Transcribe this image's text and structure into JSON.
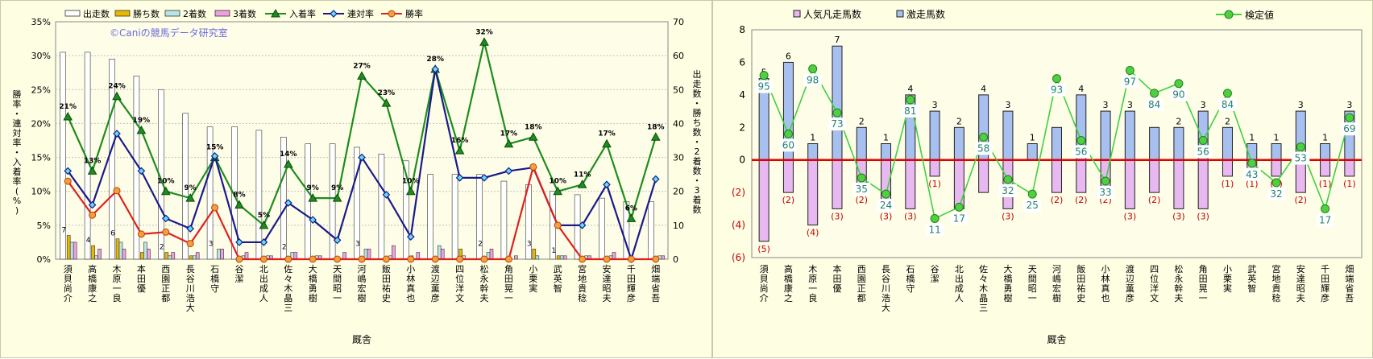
{
  "watermark": "©Caniの競馬データ研究室",
  "chart_data": [
    {
      "type": "bar",
      "xlabel": "厩舎",
      "ylabel_left": "勝率・連対率・入着率(%)",
      "ylabel_right": "出走数・勝ち数・2着数・3着数",
      "ylim_left": [
        0,
        35
      ],
      "ylim_right": [
        0,
        70
      ],
      "left_ticks": [
        "0%",
        "5%",
        "10%",
        "15%",
        "20%",
        "25%",
        "30%",
        "35%"
      ],
      "right_ticks": [
        "0",
        "10",
        "20",
        "30",
        "40",
        "50",
        "60",
        "70"
      ],
      "legend_position": "top",
      "categories": [
        "須貝 尚介",
        "高橋 康之",
        "木原 一良",
        "本田 優",
        "西園 正都",
        "長谷川 浩大",
        "石橋 守",
        "谷 潔",
        "北出 成人",
        "佐々木 晶三",
        "大橋 勇樹",
        "天間 昭一",
        "河嶋 宏樹",
        "飯田 祐史",
        "小林 真也",
        "渡辺 薫彦",
        "四位 洋文",
        "松永 幹夫",
        "角田 晃一",
        "小栗 実",
        "武 英智",
        "宮地 貴稔",
        "安達 昭夫",
        "千田 輝彦",
        "畑端 省吾"
      ],
      "series": [
        {
          "name": "出走数",
          "kind": "bar",
          "axis": "right",
          "color": "#ffffff",
          "values": [
            61,
            61,
            59,
            54,
            50,
            43,
            39,
            39,
            38,
            36,
            34,
            34,
            33,
            31,
            29,
            25,
            25,
            25,
            23,
            22,
            20,
            19,
            18,
            17,
            17
          ]
        },
        {
          "name": "勝ち数",
          "kind": "bar",
          "axis": "right",
          "color": "#e8b800",
          "values": [
            7,
            4,
            6,
            2,
            2,
            1,
            0,
            0,
            0,
            0,
            0,
            0,
            0,
            0,
            1,
            0,
            3,
            0,
            0,
            3,
            1,
            0,
            0,
            0,
            0
          ]
        },
        {
          "name": "2着数",
          "kind": "bar",
          "axis": "right",
          "color": "#b8e6e6",
          "values": [
            5,
            1,
            5,
            5,
            1,
            1,
            3,
            1,
            1,
            2,
            1,
            0,
            3,
            1,
            0,
            4,
            1,
            2,
            0,
            1,
            1,
            1,
            1,
            0,
            1
          ]
        },
        {
          "name": "3着数",
          "kind": "bar",
          "axis": "right",
          "color": "#f0a0e0",
          "values": [
            5,
            3,
            3,
            3,
            2,
            2,
            3,
            2,
            1,
            2,
            1,
            2,
            3,
            4,
            2,
            3,
            0,
            3,
            1,
            0,
            1,
            1,
            2,
            0,
            1
          ]
        },
        {
          "name": "入着率",
          "kind": "line",
          "axis": "left",
          "color": "#1e8c1e",
          "marker": "triangle",
          "values": [
            21,
            13,
            24,
            19,
            10,
            9,
            15,
            8,
            5,
            14,
            9,
            9,
            27,
            23,
            10,
            28,
            16,
            32,
            17,
            18,
            10,
            11,
            17,
            6,
            18
          ]
        },
        {
          "name": "連対率",
          "kind": "line",
          "axis": "left",
          "color": "#1a1a8c",
          "marker": "diamond",
          "values": [
            13,
            8,
            18.5,
            13,
            6,
            4.5,
            15.2,
            2.5,
            2.5,
            8.3,
            5.8,
            2.8,
            15,
            9.5,
            3.3,
            28,
            12,
            12,
            13,
            13.5,
            5,
            5,
            11,
            0,
            11.8
          ]
        },
        {
          "name": "勝率",
          "kind": "line",
          "axis": "left",
          "color": "#e02020",
          "marker": "circle",
          "values": [
            11.5,
            6.5,
            10.1,
            3.7,
            4,
            2.3,
            7.6,
            0,
            0,
            0,
            0,
            0,
            0,
            0,
            0,
            0,
            0,
            0,
            0,
            13.6,
            5,
            0,
            0,
            0,
            0
          ]
        }
      ],
      "point_labels_line": [
        "21%",
        "13%",
        "24%",
        "19%",
        "10%",
        "9%",
        "15%",
        "8%",
        "5%",
        "14%",
        "9%",
        "9%",
        "27%",
        "23%",
        "10%",
        "28%",
        "16%",
        "32%",
        "17%",
        "18%",
        "10%",
        "11%",
        "17%",
        "6%",
        "18%"
      ],
      "bar_labels": [
        "7",
        "4",
        "6",
        "",
        "2",
        "",
        "3",
        "",
        "",
        "2",
        "",
        "",
        "3",
        "",
        "",
        "",
        "",
        "2",
        "",
        "3",
        "1",
        "",
        "",
        "",
        ""
      ]
    },
    {
      "type": "bar",
      "xlabel": "厩舎",
      "ylim": [
        -6,
        8
      ],
      "yticks": [
        "8",
        "6",
        "4",
        "2",
        "0",
        "(2)",
        "(4)",
        "(6)"
      ],
      "legend_position": "top",
      "categories": [
        "須貝 尚介",
        "高橋 康之",
        "木原 一良",
        "本田 優",
        "西園 正都",
        "長谷川 浩大",
        "石橋 守",
        "谷 潔",
        "北出 成人",
        "佐々木 晶三",
        "大橋 勇樹",
        "天間 昭一",
        "河嶋 宏樹",
        "飯田 祐史",
        "小林 真也",
        "渡辺 薫彦",
        "四位 洋文",
        "松永 幹夫",
        "角田 晃一",
        "小栗 実",
        "武 英智",
        "宮地 貴稔",
        "安達 昭夫",
        "千田 輝彦",
        "畑端 省吾"
      ],
      "series": [
        {
          "name": "人気凡走馬数",
          "kind": "bar",
          "color": "#e8b8f0",
          "values": [
            -5,
            -2,
            -4,
            -3,
            -2,
            -3,
            -3,
            -1,
            -3,
            -2,
            -3,
            0,
            -2,
            -2,
            -2,
            -3,
            -2,
            -3,
            -3,
            -1,
            -1,
            -1,
            -2,
            -1,
            -1
          ]
        },
        {
          "name": "激走馬数",
          "kind": "bar",
          "color": "#a8c0f0",
          "values": [
            5,
            6,
            1,
            7,
            2,
            1,
            4,
            3,
            2,
            4,
            3,
            1,
            2,
            4,
            3,
            3,
            2,
            2,
            3,
            2,
            1,
            1,
            3,
            1,
            3
          ]
        },
        {
          "name": "検定値",
          "kind": "line",
          "color": "#40d040",
          "marker": "circle",
          "values": [
            5.2,
            1.6,
            5.6,
            2.9,
            -1.1,
            -2.1,
            3.7,
            -3.6,
            -2.9,
            1.4,
            -1.2,
            -2.1,
            5.0,
            1.2,
            -1.3,
            5.5,
            4.1,
            4.7,
            1.2,
            4.1,
            -0.2,
            -1.4,
            0.8,
            -3.0,
            2.6
          ]
        }
      ],
      "pos_labels": [
        "5",
        "6",
        "1",
        "7",
        "2",
        "1",
        "4",
        "3",
        "2",
        "4",
        "3",
        "1",
        "",
        "4",
        "3",
        "3",
        "",
        "2",
        "3",
        "2",
        "1",
        "1",
        "3",
        "1",
        "3"
      ],
      "neg_labels": [
        "(5)",
        "(2)",
        "(4)",
        "(3)",
        "(2)",
        "(3)",
        "(3)",
        "(1)",
        "(3)",
        "",
        "(3)",
        "",
        "(2)",
        "(2)",
        "(2)",
        "(3)",
        "(2)",
        "(3)",
        "(3)",
        "(1)",
        "(1)",
        "(1)",
        "(2)",
        "(1)",
        "(1)"
      ],
      "value_labels": [
        "95",
        "60",
        "98",
        "73",
        "35",
        "24",
        "81",
        "11",
        "17",
        "58",
        "32",
        "25",
        "93",
        "56",
        "33",
        "97",
        "84",
        "90",
        "56",
        "84",
        "43",
        "32",
        "53",
        "17",
        "69"
      ]
    }
  ]
}
